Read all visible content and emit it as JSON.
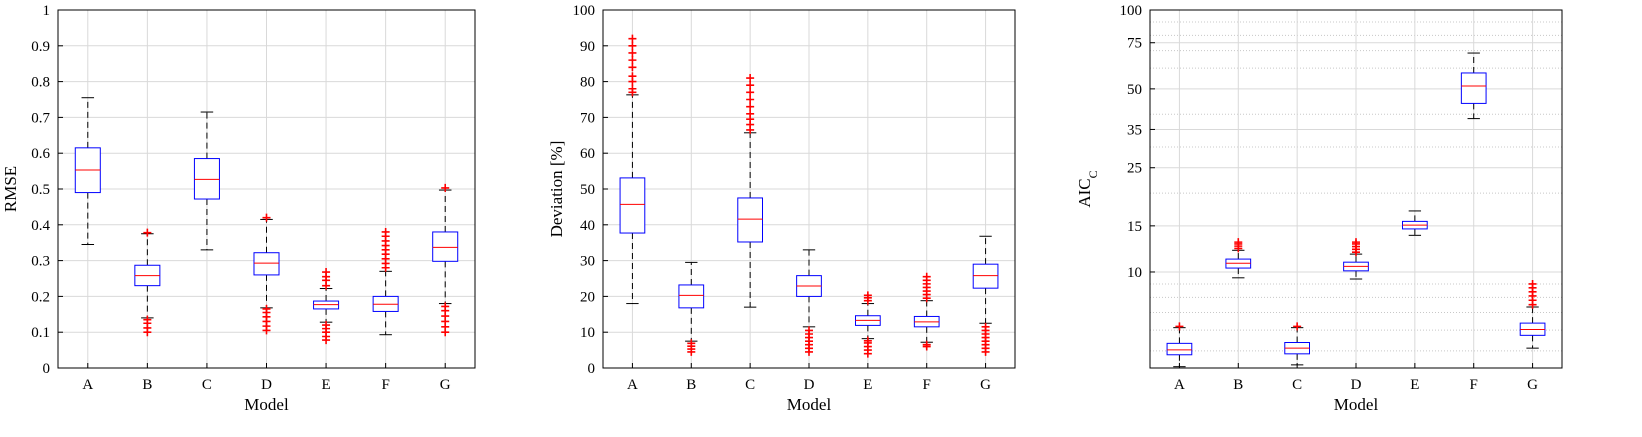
{
  "chart_data": [
    {
      "type": "boxplot",
      "title": "",
      "xlabel": "Model",
      "ylabel": "RMSE",
      "ylim": [
        0,
        1
      ],
      "yscale": "linear",
      "yticks": [
        0,
        0.1,
        0.2,
        0.3,
        0.4,
        0.5,
        0.6,
        0.7,
        0.8,
        0.9,
        1
      ],
      "ytick_labels": [
        "0",
        "0.1",
        "0.2",
        "0.3",
        "0.4",
        "0.5",
        "0.6",
        "0.7",
        "0.8",
        "0.9",
        "1"
      ],
      "grid": true,
      "categories": [
        "A",
        "B",
        "C",
        "D",
        "E",
        "F",
        "G"
      ],
      "boxes": [
        {
          "whisker_low": 0.345,
          "q1": 0.49,
          "median": 0.553,
          "q3": 0.615,
          "whisker_high": 0.755,
          "outliers_low": [],
          "outliers_high": []
        },
        {
          "whisker_low": 0.14,
          "q1": 0.23,
          "median": 0.258,
          "q3": 0.287,
          "whisker_high": 0.375,
          "outliers_low": [
            0.1,
            0.112,
            0.125,
            0.135
          ],
          "outliers_high": [
            0.378
          ]
        },
        {
          "whisker_low": 0.33,
          "q1": 0.472,
          "median": 0.527,
          "q3": 0.585,
          "whisker_high": 0.715,
          "outliers_low": [],
          "outliers_high": []
        },
        {
          "whisker_low": 0.168,
          "q1": 0.26,
          "median": 0.293,
          "q3": 0.322,
          "whisker_high": 0.415,
          "outliers_low": [
            0.105,
            0.117,
            0.13,
            0.143,
            0.155,
            0.165
          ],
          "outliers_high": [
            0.42
          ]
        },
        {
          "whisker_low": 0.128,
          "q1": 0.165,
          "median": 0.177,
          "q3": 0.187,
          "whisker_high": 0.222,
          "outliers_low": [
            0.078,
            0.088,
            0.1,
            0.11,
            0.12
          ],
          "outliers_high": [
            0.23,
            0.245,
            0.255,
            0.268
          ]
        },
        {
          "whisker_low": 0.093,
          "q1": 0.158,
          "median": 0.178,
          "q3": 0.2,
          "whisker_high": 0.27,
          "outliers_low": [],
          "outliers_high": [
            0.28,
            0.292,
            0.305,
            0.318,
            0.33,
            0.342,
            0.355,
            0.368,
            0.38
          ]
        },
        {
          "whisker_low": 0.18,
          "q1": 0.298,
          "median": 0.337,
          "q3": 0.38,
          "whisker_high": 0.497,
          "outliers_low": [
            0.1,
            0.115,
            0.13,
            0.145,
            0.16,
            0.172
          ],
          "outliers_high": [
            0.503
          ]
        }
      ]
    },
    {
      "type": "boxplot",
      "title": "",
      "xlabel": "Model",
      "ylabel": "Deviation [%]",
      "ylim": [
        0,
        100
      ],
      "yscale": "linear",
      "yticks": [
        0,
        10,
        20,
        30,
        40,
        50,
        60,
        70,
        80,
        90,
        100
      ],
      "ytick_labels": [
        "0",
        "10",
        "20",
        "30",
        "40",
        "50",
        "60",
        "70",
        "80",
        "90",
        "100"
      ],
      "grid": true,
      "categories": [
        "A",
        "B",
        "C",
        "D",
        "E",
        "F",
        "G"
      ],
      "boxes": [
        {
          "whisker_low": 18,
          "q1": 37.7,
          "median": 45.7,
          "q3": 53.1,
          "whisker_high": 76.3,
          "outliers_low": [],
          "outliers_high": [
            77,
            78,
            80,
            81.5,
            84,
            86,
            88,
            90,
            92
          ]
        },
        {
          "whisker_low": 7.5,
          "q1": 16.8,
          "median": 20.3,
          "q3": 23.2,
          "whisker_high": 29.5,
          "outliers_low": [
            4.5,
            5.3,
            6.1,
            6.9
          ],
          "outliers_high": []
        },
        {
          "whisker_low": 17,
          "q1": 35.2,
          "median": 41.6,
          "q3": 47.5,
          "whisker_high": 65.7,
          "outliers_low": [],
          "outliers_high": [
            66.5,
            68,
            69.5,
            71,
            73,
            75,
            77,
            79,
            81
          ]
        },
        {
          "whisker_low": 11.5,
          "q1": 20,
          "median": 22.9,
          "q3": 25.8,
          "whisker_high": 33,
          "outliers_low": [
            4.5,
            5.5,
            6.5,
            7.5,
            8.5,
            9.5,
            10.5
          ],
          "outliers_high": []
        },
        {
          "whisker_low": 8.2,
          "q1": 11.9,
          "median": 13.3,
          "q3": 14.6,
          "whisker_high": 18,
          "outliers_low": [
            4,
            5,
            6,
            7,
            7.6
          ],
          "outliers_high": [
            18.8,
            19.6,
            20.3
          ]
        },
        {
          "whisker_low": 7.2,
          "q1": 11.5,
          "median": 12.9,
          "q3": 14.4,
          "whisker_high": 18.8,
          "outliers_low": [
            6,
            6.5
          ],
          "outliers_high": [
            19.5,
            20.5,
            21.5,
            22.5,
            23.5,
            24.5,
            25.5
          ]
        },
        {
          "whisker_low": 12.5,
          "q1": 22.3,
          "median": 25.8,
          "q3": 29,
          "whisker_high": 36.8,
          "outliers_low": [
            4.5,
            5.5,
            6.5,
            7.5,
            8.5,
            9.5,
            10.5,
            11.5
          ],
          "outliers_high": []
        }
      ]
    },
    {
      "type": "boxplot",
      "title": "",
      "xlabel": "Model",
      "ylabel": "AIC",
      "ylabel_subscript": "C",
      "ylim": [
        4.3,
        100
      ],
      "yscale": "log",
      "yticks": [
        10,
        15,
        25,
        35,
        50,
        75,
        100
      ],
      "ytick_labels": [
        "10",
        "15",
        "25",
        "35",
        "50",
        "75",
        "100"
      ],
      "minor_gridlines": [
        5,
        6,
        7,
        8,
        9,
        20,
        30,
        40,
        60,
        70,
        80,
        90
      ],
      "grid": true,
      "categories": [
        "A",
        "B",
        "C",
        "D",
        "E",
        "F",
        "G"
      ],
      "boxes": [
        {
          "whisker_low": 4.35,
          "q1": 4.83,
          "median": 5.04,
          "q3": 5.34,
          "whisker_high": 6.13,
          "outliers_low": [],
          "outliers_high": [
            6.2
          ]
        },
        {
          "whisker_low": 9.5,
          "q1": 10.35,
          "median": 10.8,
          "q3": 11.2,
          "whisker_high": 12.1,
          "outliers_low": [],
          "outliers_high": [
            12.3,
            12.55,
            12.8,
            13
          ]
        },
        {
          "whisker_low": 4.42,
          "q1": 4.87,
          "median": 5.12,
          "q3": 5.38,
          "whisker_high": 6.13,
          "outliers_low": [],
          "outliers_high": [
            6.2
          ]
        },
        {
          "whisker_low": 9.4,
          "q1": 10.1,
          "median": 10.5,
          "q3": 10.9,
          "whisker_high": 11.7,
          "outliers_low": [],
          "outliers_high": [
            11.9,
            12.2,
            12.5,
            12.8,
            13
          ]
        },
        {
          "whisker_low": 13.8,
          "q1": 14.6,
          "median": 15.1,
          "q3": 15.6,
          "whisker_high": 17.1,
          "outliers_low": [],
          "outliers_high": []
        },
        {
          "whisker_low": 38.5,
          "q1": 44,
          "median": 51.3,
          "q3": 57.5,
          "whisker_high": 68.5,
          "outliers_low": [],
          "outliers_high": []
        },
        {
          "whisker_low": 5.12,
          "q1": 5.73,
          "median": 6.03,
          "q3": 6.38,
          "whisker_high": 7.35,
          "outliers_low": [],
          "outliers_high": [
            7.5,
            7.8,
            8.1,
            8.4,
            8.7,
            9
          ]
        }
      ]
    }
  ]
}
